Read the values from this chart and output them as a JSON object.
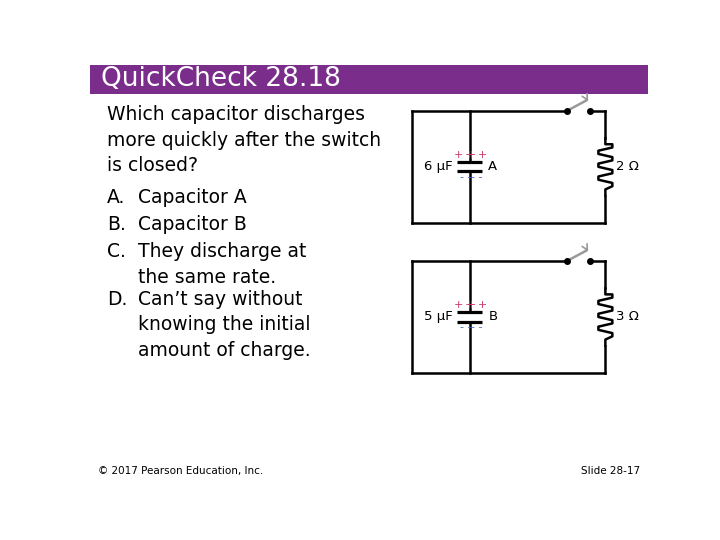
{
  "title": "QuickCheck 28.18",
  "title_bg_color": "#7B2D8B",
  "title_text_color": "#FFFFFF",
  "bg_color": "#FFFFFF",
  "question": "Which capacitor discharges\nmore quickly after the switch\nis closed?",
  "answers_letter": [
    "A.",
    "B.",
    "C.",
    "D."
  ],
  "answers_text": [
    "Capacitor A",
    "Capacitor B",
    "They discharge at\nthe same rate.",
    "Can’t say without\nknowing the initial\namount of charge."
  ],
  "footer_left": "© 2017 Pearson Education, Inc.",
  "footer_right": "Slide 28-17",
  "circuit_A_cap": "6 μF",
  "circuit_A_res": "2 Ω",
  "circuit_A_label": "A",
  "circuit_B_cap": "5 μF",
  "circuit_B_res": "3 Ω",
  "circuit_B_label": "B",
  "plus_color": "#CC3366",
  "minus_color": "#4466CC",
  "switch_color": "#999999"
}
